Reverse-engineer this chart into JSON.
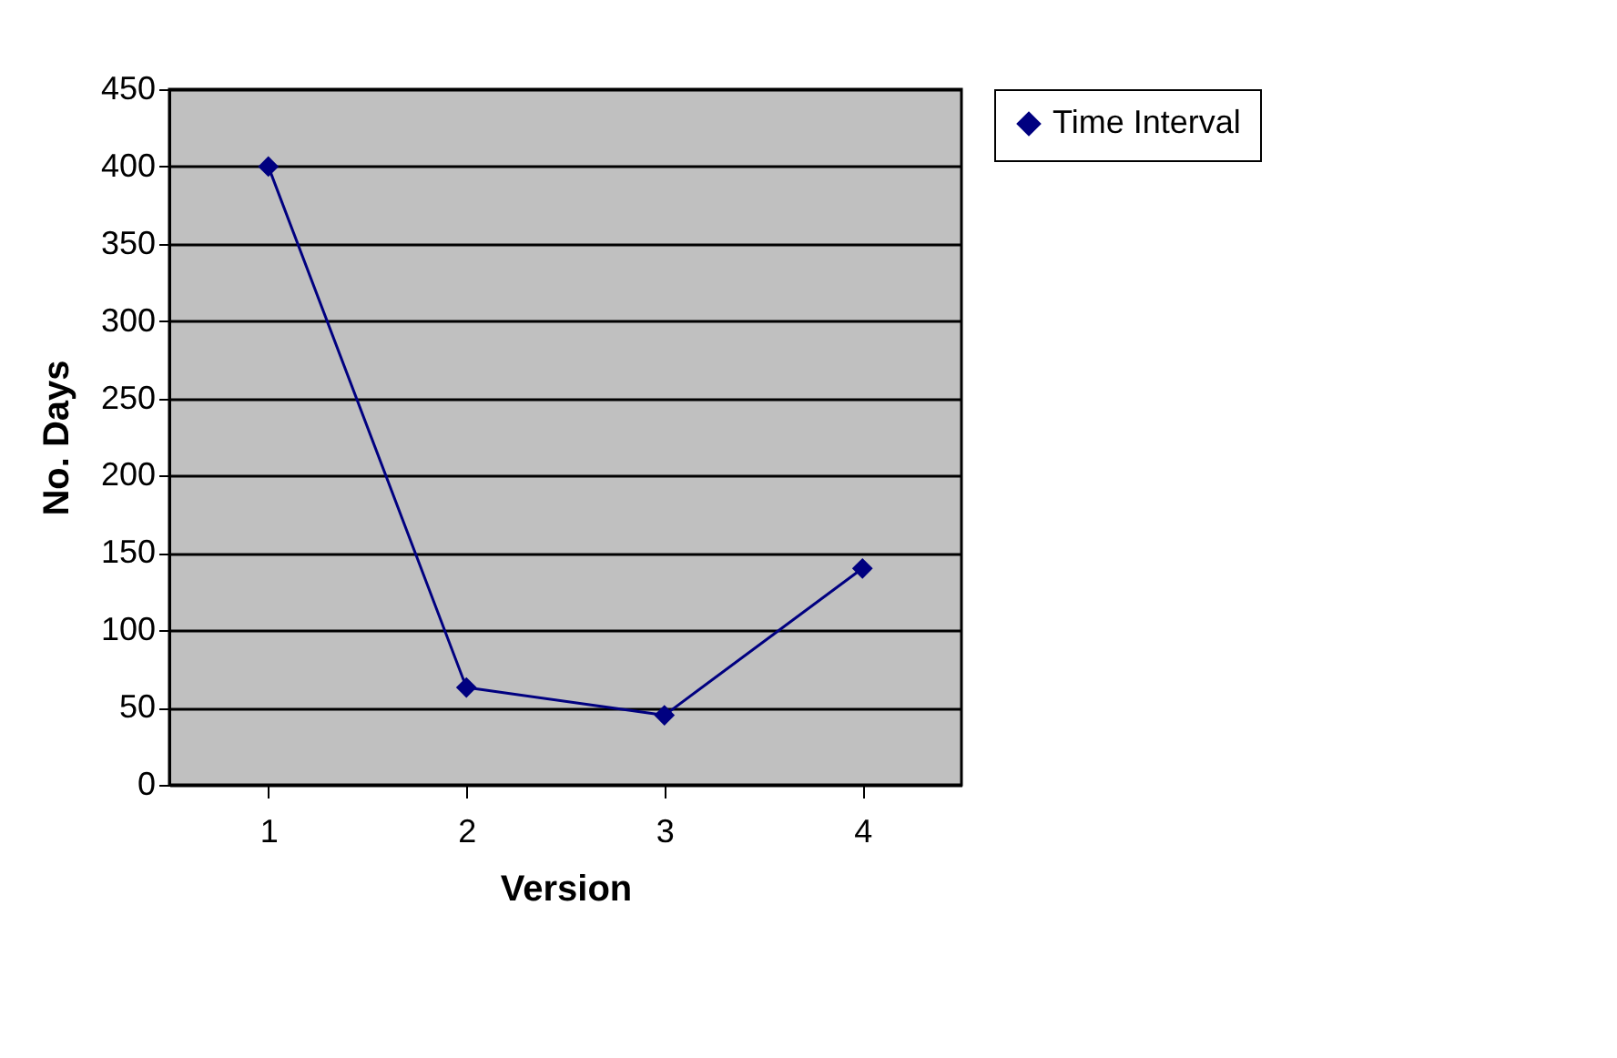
{
  "chart_data": {
    "type": "line",
    "xlabel": "Version",
    "ylabel": "No. Days",
    "categories": [
      "1",
      "2",
      "3",
      "4"
    ],
    "series": [
      {
        "name": "Time Interval",
        "color": "#000080",
        "values": [
          400,
          63,
          45,
          140
        ]
      }
    ],
    "ylim": [
      0,
      450
    ],
    "yticks": [
      0,
      50,
      100,
      150,
      200,
      250,
      300,
      350,
      400,
      450
    ],
    "grid": "y",
    "legend": "right",
    "marker": "diamond",
    "line_style": "solid"
  }
}
